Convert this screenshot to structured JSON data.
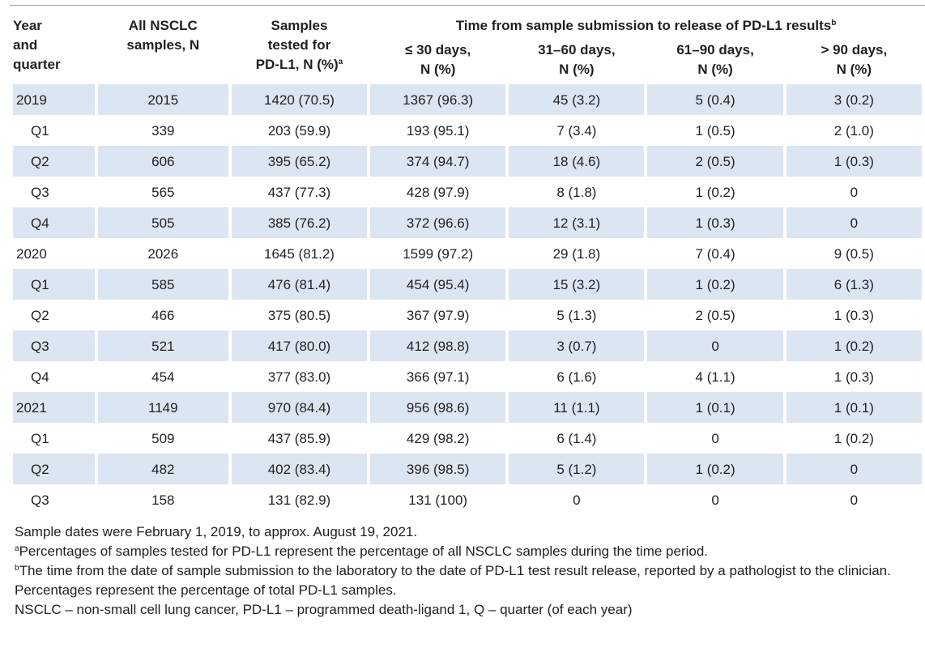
{
  "headers": {
    "year": [
      "Year",
      "and",
      "quarter"
    ],
    "all": [
      "All NSCLC",
      "samples, N"
    ],
    "tested": [
      "Samples",
      "tested for",
      "PD-L1, N (%)"
    ],
    "tested_sup": "a",
    "time_span": "Time from sample submission to release of PD-L1 results",
    "time_span_sup": "b",
    "t30": [
      "≤ 30 days,",
      "N (%)"
    ],
    "t60": [
      "31–60 days,",
      "N (%)"
    ],
    "t90": [
      "61–90 days,",
      "N (%)"
    ],
    "tmore": [
      "> 90 days,",
      "N (%)"
    ]
  },
  "rows": [
    {
      "label": "2019",
      "type": "year",
      "all": "2015",
      "tested": "1420 (70.5)",
      "t30": "1367 (96.3)",
      "t60": "45 (3.2)",
      "t90": "5 (0.4)",
      "tmore": "3 (0.2)"
    },
    {
      "label": "Q1",
      "type": "q",
      "all": "339",
      "tested": "203 (59.9)",
      "t30": "193 (95.1)",
      "t60": "7 (3.4)",
      "t90": "1 (0.5)",
      "tmore": "2 (1.0)"
    },
    {
      "label": "Q2",
      "type": "q",
      "all": "606",
      "tested": "395 (65.2)",
      "t30": "374 (94.7)",
      "t60": "18 (4.6)",
      "t90": "2 (0.5)",
      "tmore": "1 (0.3)"
    },
    {
      "label": "Q3",
      "type": "q",
      "all": "565",
      "tested": "437 (77.3)",
      "t30": "428 (97.9)",
      "t60": "8 (1.8)",
      "t90": "1 (0.2)",
      "tmore": "0"
    },
    {
      "label": "Q4",
      "type": "q",
      "all": "505",
      "tested": "385 (76.2)",
      "t30": "372 (96.6)",
      "t60": "12 (3.1)",
      "t90": "1 (0.3)",
      "tmore": "0"
    },
    {
      "label": "2020",
      "type": "year",
      "all": "2026",
      "tested": "1645 (81.2)",
      "t30": "1599 (97.2)",
      "t60": "29 (1.8)",
      "t90": "7 (0.4)",
      "tmore": "9 (0.5)"
    },
    {
      "label": "Q1",
      "type": "q",
      "all": "585",
      "tested": "476 (81.4)",
      "t30": "454 (95.4)",
      "t60": "15 (3.2)",
      "t90": "1 (0.2)",
      "tmore": "6 (1.3)"
    },
    {
      "label": "Q2",
      "type": "q",
      "all": "466",
      "tested": "375 (80.5)",
      "t30": "367 (97.9)",
      "t60": "5 (1.3)",
      "t90": "2 (0.5)",
      "tmore": "1 (0.3)"
    },
    {
      "label": "Q3",
      "type": "q",
      "all": "521",
      "tested": "417 (80.0)",
      "t30": "412 (98.8)",
      "t60": "3 (0.7)",
      "t90": "0",
      "tmore": "1 (0.2)"
    },
    {
      "label": "Q4",
      "type": "q",
      "all": "454",
      "tested": "377 (83.0)",
      "t30": "366 (97.1)",
      "t60": "6 (1.6)",
      "t90": "4 (1.1)",
      "tmore": "1 (0.3)"
    },
    {
      "label": "2021",
      "type": "year",
      "all": "1149",
      "tested": "970 (84.4)",
      "t30": "956 (98.6)",
      "t60": "11 (1.1)",
      "t90": "1 (0.1)",
      "tmore": "1 (0.1)"
    },
    {
      "label": "Q1",
      "type": "q",
      "all": "509",
      "tested": "437 (85.9)",
      "t30": "429 (98.2)",
      "t60": "6 (1.4)",
      "t90": "0",
      "tmore": "1 (0.2)"
    },
    {
      "label": "Q2",
      "type": "q",
      "all": "482",
      "tested": "402 (83.4)",
      "t30": "396 (98.5)",
      "t60": "5 (1.2)",
      "t90": "1 (0.2)",
      "tmore": "0"
    },
    {
      "label": "Q3",
      "type": "q",
      "all": "158",
      "tested": "131 (82.9)",
      "t30": "131 (100)",
      "t60": "0",
      "t90": "0",
      "tmore": "0"
    }
  ],
  "notes": {
    "dates": "Sample dates were February 1, 2019, to approx. August 19, 2021.",
    "a_mark": "a",
    "a_text": "Percentages of samples tested for PD-L1 represent the percentage of all NSCLC samples during the time period.",
    "b_mark": "b",
    "b_text": "The time from the date of sample submission to the laboratory to the date of PD-L1 test result release, reported by a pathologist to the clinician. Percentages represent the percentage of total PD-L1 samples.",
    "abbrev": "NSCLC – non-small cell lung cancer, PD-L1 – programmed death-ligand 1, Q – quarter (of each year)"
  },
  "colors": {
    "shade": "#dce6f2",
    "text": "#231f20",
    "rule": "#9aa0a6"
  }
}
